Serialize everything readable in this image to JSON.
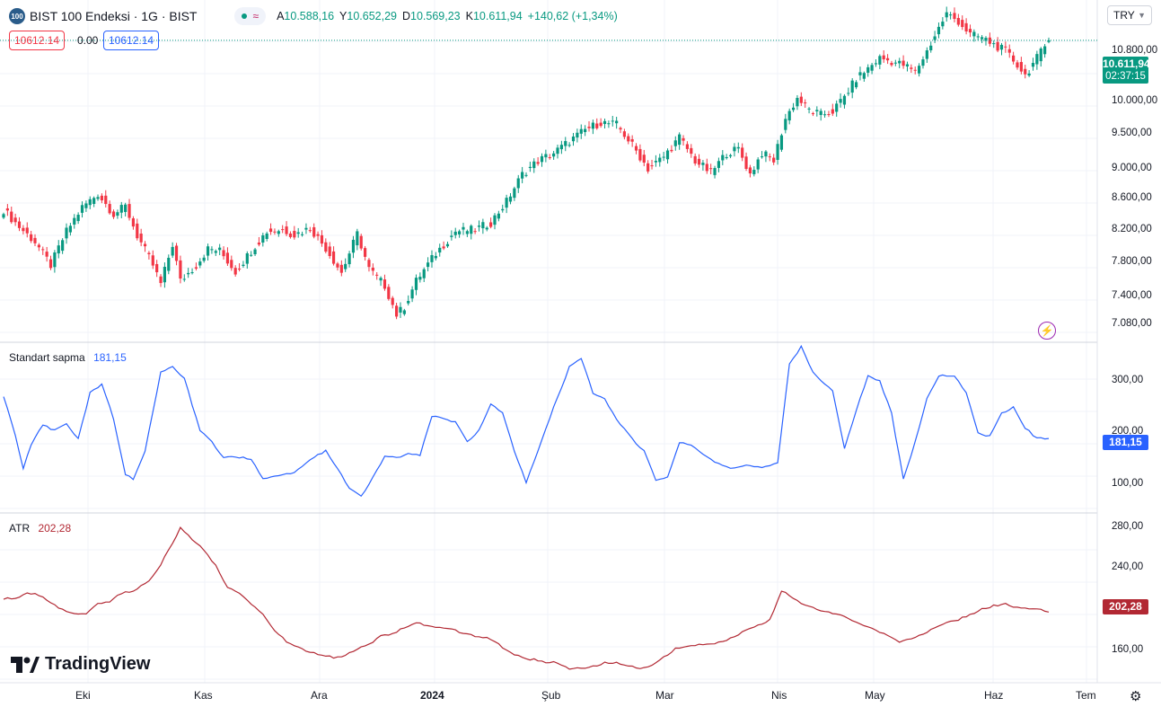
{
  "header": {
    "logo_text": "100",
    "title": "BIST 100 Endeksi · 1G · BIST",
    "ohlc": [
      {
        "k": "A",
        "v": "10.588,16"
      },
      {
        "k": "Y",
        "v": "10.652,29"
      },
      {
        "k": "D",
        "v": "10.569,23"
      },
      {
        "k": "K",
        "v": "10.611,94"
      },
      {
        "k": "",
        "v": "+140,62 (+1,34%)"
      }
    ],
    "sell_price": "10612.14",
    "spread": "0.00",
    "buy_price": "10612.14",
    "currency": "TRY",
    "currency_icon": "chevron-down-icon"
  },
  "colors": {
    "up": "#089981",
    "down": "#f23645",
    "stddev_line": "#2962ff",
    "atr_line": "#b22833"
  },
  "price_axis": [
    "10.800,00",
    "10.000,00",
    "9.500,00",
    "9.000,00",
    "8.600,00",
    "8.200,00",
    "7.800,00",
    "7.400,00",
    "7.080,00"
  ],
  "last_price_tag": {
    "price": "10.611,94",
    "countdown": "02:37:15"
  },
  "stddev_pane": {
    "label": "Standart sapma",
    "value": "181,15",
    "axis": [
      "300,00",
      "200,00",
      "100,00"
    ]
  },
  "atr_pane": {
    "label": "ATR",
    "value": "202,28",
    "axis": [
      "280,00",
      "240,00",
      "160,00"
    ]
  },
  "x_axis": [
    "Eki",
    "Kas",
    "Ara",
    "2024",
    "Şub",
    "Mar",
    "Nis",
    "May",
    "Haz",
    "Tem"
  ],
  "branding": "TradingView",
  "chart_data": [
    {
      "type": "candlestick",
      "title": "BIST 100 Endeksi · 1G · BIST",
      "x_range": [
        "2023-09-20",
        "2024-06-20"
      ],
      "ylim": [
        6950,
        11150
      ],
      "y_scale": "log",
      "anchors": [
        [
          0,
          8350
        ],
        [
          4,
          8150
        ],
        [
          8,
          7980
        ],
        [
          12,
          7720
        ],
        [
          16,
          8100
        ],
        [
          20,
          8380
        ],
        [
          24,
          8540
        ],
        [
          28,
          8300
        ],
        [
          31,
          8390
        ],
        [
          34,
          8050
        ],
        [
          38,
          7720
        ],
        [
          40,
          7520
        ],
        [
          43,
          7950
        ],
        [
          45,
          7550
        ],
        [
          49,
          7720
        ],
        [
          52,
          7900
        ],
        [
          55,
          7880
        ],
        [
          59,
          7650
        ],
        [
          63,
          7880
        ],
        [
          67,
          8100
        ],
        [
          71,
          8120
        ],
        [
          74,
          8060
        ],
        [
          78,
          8140
        ],
        [
          82,
          7910
        ],
        [
          86,
          7640
        ],
        [
          90,
          8070
        ],
        [
          93,
          7680
        ],
        [
          97,
          7500
        ],
        [
          100,
          7200
        ],
        [
          102,
          7280
        ],
        [
          105,
          7550
        ],
        [
          110,
          7850
        ],
        [
          115,
          8100
        ],
        [
          120,
          8120
        ],
        [
          124,
          8200
        ],
        [
          128,
          8450
        ],
        [
          132,
          8780
        ],
        [
          136,
          8950
        ],
        [
          140,
          9050
        ],
        [
          144,
          9200
        ],
        [
          148,
          9350
        ],
        [
          152,
          9450
        ],
        [
          156,
          9420
        ],
        [
          160,
          9150
        ],
        [
          164,
          8850
        ],
        [
          168,
          9000
        ],
        [
          172,
          9250
        ],
        [
          176,
          8950
        ],
        [
          180,
          8800
        ],
        [
          184,
          9050
        ],
        [
          187,
          9100
        ],
        [
          190,
          8780
        ],
        [
          193,
          9050
        ],
        [
          196,
          8950
        ],
        [
          199,
          9500
        ],
        [
          202,
          9780
        ],
        [
          205,
          9620
        ],
        [
          208,
          9550
        ],
        [
          211,
          9600
        ],
        [
          214,
          9800
        ],
        [
          217,
          10050
        ],
        [
          220,
          10200
        ],
        [
          223,
          10350
        ],
        [
          226,
          10300
        ],
        [
          229,
          10250
        ],
        [
          232,
          10150
        ],
        [
          235,
          10450
        ],
        [
          238,
          10800
        ],
        [
          240,
          11020
        ],
        [
          243,
          10900
        ],
        [
          246,
          10700
        ],
        [
          249,
          10650
        ],
        [
          252,
          10550
        ],
        [
          255,
          10450
        ],
        [
          258,
          10250
        ],
        [
          260,
          10100
        ],
        [
          263,
          10350
        ],
        [
          266,
          10612
        ]
      ],
      "last": {
        "open": 10588.16,
        "high": 10652.29,
        "low": 10569.23,
        "close": 10611.94
      }
    },
    {
      "type": "line",
      "title": "Standart sapma",
      "ylim": [
        60,
        340
      ],
      "anchors": [
        [
          0,
          255
        ],
        [
          3,
          185
        ],
        [
          5,
          130
        ],
        [
          7,
          170
        ],
        [
          10,
          205
        ],
        [
          13,
          195
        ],
        [
          16,
          208
        ],
        [
          19,
          180
        ],
        [
          22,
          260
        ],
        [
          25,
          275
        ],
        [
          28,
          215
        ],
        [
          31,
          120
        ],
        [
          33,
          110
        ],
        [
          36,
          160
        ],
        [
          40,
          295
        ],
        [
          43,
          305
        ],
        [
          46,
          285
        ],
        [
          50,
          195
        ],
        [
          53,
          175
        ],
        [
          56,
          148
        ],
        [
          59,
          150
        ],
        [
          63,
          145
        ],
        [
          66,
          112
        ],
        [
          70,
          118
        ],
        [
          74,
          122
        ],
        [
          78,
          145
        ],
        [
          82,
          160
        ],
        [
          85,
          130
        ],
        [
          88,
          95
        ],
        [
          91,
          80
        ],
        [
          94,
          115
        ],
        [
          97,
          150
        ],
        [
          100,
          148
        ],
        [
          103,
          155
        ],
        [
          106,
          152
        ],
        [
          109,
          220
        ],
        [
          112,
          215
        ],
        [
          115,
          210
        ],
        [
          118,
          175
        ],
        [
          121,
          195
        ],
        [
          124,
          240
        ],
        [
          127,
          225
        ],
        [
          130,
          160
        ],
        [
          133,
          105
        ],
        [
          136,
          160
        ],
        [
          140,
          235
        ],
        [
          144,
          305
        ],
        [
          147,
          320
        ],
        [
          150,
          260
        ],
        [
          153,
          250
        ],
        [
          156,
          215
        ],
        [
          160,
          180
        ],
        [
          163,
          160
        ],
        [
          166,
          110
        ],
        [
          169,
          115
        ],
        [
          172,
          175
        ],
        [
          175,
          170
        ],
        [
          178,
          155
        ],
        [
          181,
          140
        ],
        [
          185,
          130
        ],
        [
          189,
          135
        ],
        [
          193,
          130
        ],
        [
          197,
          140
        ],
        [
          200,
          310
        ],
        [
          203,
          340
        ],
        [
          206,
          295
        ],
        [
          209,
          275
        ],
        [
          211,
          265
        ],
        [
          214,
          165
        ],
        [
          217,
          230
        ],
        [
          220,
          290
        ],
        [
          223,
          280
        ],
        [
          226,
          225
        ],
        [
          229,
          110
        ],
        [
          232,
          175
        ],
        [
          235,
          250
        ],
        [
          238,
          290
        ],
        [
          242,
          290
        ],
        [
          245,
          260
        ],
        [
          248,
          190
        ],
        [
          251,
          185
        ],
        [
          254,
          225
        ],
        [
          257,
          235
        ],
        [
          260,
          200
        ],
        [
          263,
          181.15
        ]
      ]
    },
    {
      "type": "line",
      "title": "ATR",
      "ylim": [
        140,
        290
      ],
      "anchors": [
        [
          0,
          215
        ],
        [
          3,
          215
        ],
        [
          6,
          220
        ],
        [
          9,
          218
        ],
        [
          12,
          210
        ],
        [
          15,
          205
        ],
        [
          18,
          200
        ],
        [
          21,
          200
        ],
        [
          24,
          210
        ],
        [
          27,
          212
        ],
        [
          30,
          220
        ],
        [
          33,
          222
        ],
        [
          36,
          228
        ],
        [
          39,
          240
        ],
        [
          42,
          260
        ],
        [
          45,
          280
        ],
        [
          48,
          270
        ],
        [
          51,
          260
        ],
        [
          54,
          245
        ],
        [
          57,
          225
        ],
        [
          60,
          220
        ],
        [
          63,
          210
        ],
        [
          66,
          200
        ],
        [
          69,
          185
        ],
        [
          72,
          175
        ],
        [
          75,
          170
        ],
        [
          78,
          165
        ],
        [
          81,
          162
        ],
        [
          84,
          160
        ],
        [
          87,
          162
        ],
        [
          90,
          168
        ],
        [
          93,
          172
        ],
        [
          96,
          180
        ],
        [
          99,
          182
        ],
        [
          102,
          188
        ],
        [
          105,
          192
        ],
        [
          108,
          190
        ],
        [
          111,
          188
        ],
        [
          114,
          186
        ],
        [
          117,
          183
        ],
        [
          120,
          180
        ],
        [
          123,
          178
        ],
        [
          126,
          172
        ],
        [
          129,
          165
        ],
        [
          132,
          160
        ],
        [
          135,
          158
        ],
        [
          138,
          156
        ],
        [
          141,
          155
        ],
        [
          144,
          150
        ],
        [
          147,
          150
        ],
        [
          150,
          152
        ],
        [
          153,
          155
        ],
        [
          156,
          155
        ],
        [
          159,
          152
        ],
        [
          162,
          150
        ],
        [
          165,
          153
        ],
        [
          168,
          160
        ],
        [
          171,
          168
        ],
        [
          174,
          170
        ],
        [
          177,
          172
        ],
        [
          180,
          172
        ],
        [
          183,
          175
        ],
        [
          186,
          180
        ],
        [
          189,
          185
        ],
        [
          192,
          190
        ],
        [
          195,
          195
        ],
        [
          198,
          222
        ],
        [
          201,
          215
        ],
        [
          204,
          208
        ],
        [
          207,
          205
        ],
        [
          210,
          202
        ],
        [
          213,
          200
        ],
        [
          216,
          195
        ],
        [
          219,
          190
        ],
        [
          222,
          185
        ],
        [
          225,
          180
        ],
        [
          228,
          175
        ],
        [
          231,
          178
        ],
        [
          234,
          182
        ],
        [
          237,
          188
        ],
        [
          240,
          192
        ],
        [
          243,
          195
        ],
        [
          246,
          200
        ],
        [
          249,
          205
        ],
        [
          252,
          208
        ],
        [
          255,
          210
        ],
        [
          258,
          206
        ],
        [
          261,
          205
        ],
        [
          264,
          204
        ],
        [
          266,
          202.28
        ]
      ]
    }
  ]
}
